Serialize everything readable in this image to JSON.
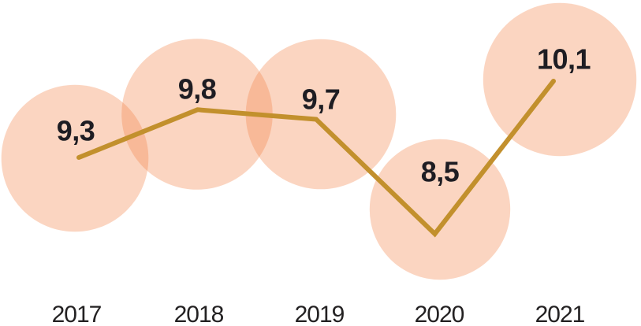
{
  "chart_data": {
    "type": "line",
    "subtype": "line-with-area-proportional-bubbles",
    "title": "",
    "xlabel": "",
    "ylabel": "",
    "categories": [
      "2017",
      "2018",
      "2019",
      "2020",
      "2021"
    ],
    "values": [
      9.3,
      9.8,
      9.7,
      8.5,
      10.1
    ],
    "value_labels": [
      "9,3",
      "9,8",
      "9,7",
      "8,5",
      "10,1"
    ],
    "decimal_separator": ",",
    "ylim": [
      8,
      10.5
    ],
    "grid": false,
    "legend": false,
    "axes_hidden": true,
    "bubble_area_proportional_to_value": true,
    "colors": {
      "bubble_fill": "#F3884D",
      "bubble_opacity": 0.35,
      "line": "#C2902D",
      "value_label": "#1E1D23",
      "year_label": "#232122"
    }
  }
}
